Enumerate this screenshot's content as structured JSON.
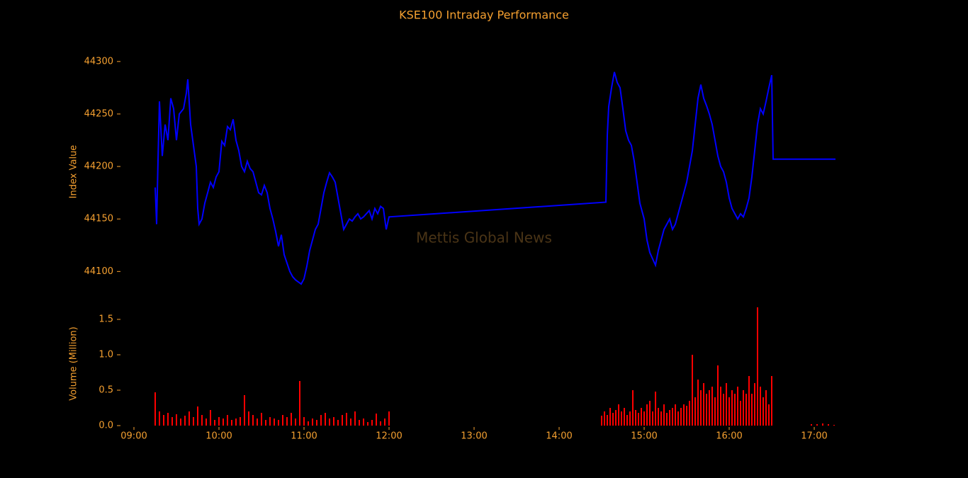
{
  "chart_data": [
    {
      "type": "line",
      "title": "KSE100 Intraday Performance",
      "watermark": "Mettis Global News",
      "y_label": "Index Value",
      "color": "#0000ff",
      "x": [
        "09:15",
        "09:16",
        "09:17",
        "09:18",
        "09:20",
        "09:22",
        "09:24",
        "09:26",
        "09:28",
        "09:30",
        "09:32",
        "09:35",
        "09:37",
        "09:38",
        "09:40",
        "09:42",
        "09:44",
        "09:45",
        "09:46",
        "09:48",
        "09:50",
        "09:52",
        "09:54",
        "09:56",
        "09:58",
        "10:00",
        "10:02",
        "10:04",
        "10:06",
        "10:08",
        "10:10",
        "10:12",
        "10:14",
        "10:16",
        "10:18",
        "10:20",
        "10:22",
        "10:24",
        "10:26",
        "10:28",
        "10:30",
        "10:32",
        "10:34",
        "10:36",
        "10:38",
        "10:40",
        "10:42",
        "10:44",
        "10:46",
        "10:48",
        "10:50",
        "10:52",
        "10:54",
        "10:56",
        "10:58",
        "11:00",
        "11:02",
        "11:04",
        "11:06",
        "11:08",
        "11:10",
        "11:12",
        "11:14",
        "11:16",
        "11:18",
        "11:20",
        "11:22",
        "11:24",
        "11:26",
        "11:28",
        "11:30",
        "11:32",
        "11:34",
        "11:36",
        "11:38",
        "11:40",
        "11:42",
        "11:44",
        "11:46",
        "11:48",
        "11:50",
        "11:52",
        "11:54",
        "11:56",
        "11:58",
        "12:00",
        "14:33",
        "14:34",
        "14:35",
        "14:37",
        "14:39",
        "14:41",
        "14:43",
        "14:45",
        "14:47",
        "14:49",
        "14:51",
        "14:53",
        "14:55",
        "14:57",
        "15:00",
        "15:02",
        "15:04",
        "15:06",
        "15:08",
        "15:10",
        "15:12",
        "15:14",
        "15:16",
        "15:18",
        "15:20",
        "15:22",
        "15:24",
        "15:26",
        "15:28",
        "15:30",
        "15:32",
        "15:34",
        "15:36",
        "15:38",
        "15:40",
        "15:42",
        "15:44",
        "15:46",
        "15:48",
        "15:50",
        "15:52",
        "15:54",
        "15:56",
        "15:58",
        "16:00",
        "16:02",
        "16:04",
        "16:06",
        "16:08",
        "16:10",
        "16:12",
        "16:14",
        "16:16",
        "16:18",
        "16:20",
        "16:22",
        "16:24",
        "16:26",
        "16:28",
        "16:30",
        "16:31",
        "17:15"
      ],
      "values": [
        44180,
        44145,
        44206,
        44262,
        44210,
        44240,
        44225,
        44265,
        44255,
        44225,
        44250,
        44255,
        44270,
        44283,
        44240,
        44220,
        44200,
        44160,
        44145,
        44150,
        44165,
        44175,
        44185,
        44180,
        44190,
        44195,
        44224,
        44220,
        44238,
        44235,
        44245,
        44225,
        44215,
        44200,
        44195,
        44205,
        44198,
        44195,
        44185,
        44175,
        44173,
        44182,
        44175,
        44160,
        44150,
        44138,
        44124,
        44135,
        44116,
        44108,
        44100,
        44095,
        44092,
        44090,
        44088,
        44093,
        44105,
        44120,
        44130,
        44140,
        44145,
        44160,
        44175,
        44185,
        44194,
        44190,
        44185,
        44170,
        44155,
        44140,
        44145,
        44150,
        44148,
        44152,
        44155,
        44150,
        44152,
        44155,
        44158,
        44150,
        44160,
        44155,
        44162,
        44160,
        44140,
        44152,
        44166,
        44230,
        44257,
        44275,
        44290,
        44280,
        44275,
        44255,
        44234,
        44225,
        44220,
        44205,
        44185,
        44165,
        44150,
        44130,
        44118,
        44112,
        44106,
        44120,
        44130,
        44140,
        44145,
        44150,
        44140,
        44145,
        44155,
        44165,
        44175,
        44185,
        44200,
        44215,
        44240,
        44265,
        44278,
        44265,
        44258,
        44250,
        44240,
        44225,
        44210,
        44200,
        44195,
        44185,
        44170,
        44160,
        44155,
        44150,
        44155,
        44152,
        44160,
        44170,
        44190,
        44215,
        44240,
        44255,
        44250,
        44262,
        44275,
        44287,
        44207,
        44207
      ],
      "xlim": [
        "08:50",
        "17:25"
      ],
      "ylim": [
        44080,
        44310
      ],
      "yticks": [
        44100,
        44150,
        44200,
        44250,
        44300
      ]
    },
    {
      "type": "bar",
      "y_label": "Volume (Million)",
      "color": "#ff0000",
      "x": [
        "09:15",
        "09:18",
        "09:21",
        "09:24",
        "09:27",
        "09:30",
        "09:33",
        "09:36",
        "09:39",
        "09:42",
        "09:45",
        "09:48",
        "09:51",
        "09:54",
        "09:57",
        "10:00",
        "10:03",
        "10:06",
        "10:09",
        "10:12",
        "10:15",
        "10:18",
        "10:21",
        "10:24",
        "10:27",
        "10:30",
        "10:33",
        "10:36",
        "10:39",
        "10:42",
        "10:45",
        "10:48",
        "10:51",
        "10:54",
        "10:57",
        "11:00",
        "11:03",
        "11:06",
        "11:09",
        "11:12",
        "11:15",
        "11:18",
        "11:21",
        "11:24",
        "11:27",
        "11:30",
        "11:33",
        "11:36",
        "11:39",
        "11:42",
        "11:45",
        "11:48",
        "11:51",
        "11:54",
        "11:57",
        "12:00",
        "14:30",
        "14:32",
        "14:34",
        "14:36",
        "14:38",
        "14:40",
        "14:42",
        "14:44",
        "14:46",
        "14:48",
        "14:50",
        "14:52",
        "14:54",
        "14:56",
        "14:58",
        "15:00",
        "15:02",
        "15:04",
        "15:06",
        "15:08",
        "15:10",
        "15:12",
        "15:14",
        "15:16",
        "15:18",
        "15:20",
        "15:22",
        "15:24",
        "15:26",
        "15:28",
        "15:30",
        "15:32",
        "15:34",
        "15:36",
        "15:38",
        "15:40",
        "15:42",
        "15:44",
        "15:46",
        "15:48",
        "15:50",
        "15:52",
        "15:54",
        "15:56",
        "15:58",
        "16:00",
        "16:02",
        "16:04",
        "16:06",
        "16:08",
        "16:10",
        "16:12",
        "16:14",
        "16:16",
        "16:18",
        "16:20",
        "16:22",
        "16:24",
        "16:26",
        "16:28",
        "16:30",
        "16:58",
        "17:02",
        "17:06",
        "17:10",
        "17:14"
      ],
      "values": [
        0.47,
        0.2,
        0.15,
        0.18,
        0.12,
        0.16,
        0.1,
        0.14,
        0.2,
        0.12,
        0.27,
        0.15,
        0.1,
        0.22,
        0.08,
        0.12,
        0.1,
        0.15,
        0.08,
        0.1,
        0.12,
        0.43,
        0.2,
        0.15,
        0.1,
        0.18,
        0.08,
        0.12,
        0.1,
        0.08,
        0.15,
        0.12,
        0.18,
        0.1,
        0.63,
        0.12,
        0.06,
        0.1,
        0.08,
        0.15,
        0.18,
        0.1,
        0.12,
        0.08,
        0.15,
        0.18,
        0.1,
        0.2,
        0.08,
        0.1,
        0.05,
        0.08,
        0.17,
        0.06,
        0.1,
        0.2,
        0.14,
        0.2,
        0.15,
        0.25,
        0.18,
        0.22,
        0.3,
        0.2,
        0.25,
        0.15,
        0.2,
        0.5,
        0.22,
        0.18,
        0.25,
        0.2,
        0.3,
        0.35,
        0.2,
        0.48,
        0.25,
        0.2,
        0.3,
        0.18,
        0.22,
        0.25,
        0.3,
        0.2,
        0.25,
        0.3,
        0.28,
        0.35,
        1.0,
        0.4,
        0.65,
        0.5,
        0.6,
        0.45,
        0.5,
        0.55,
        0.4,
        0.85,
        0.55,
        0.45,
        0.6,
        0.4,
        0.5,
        0.45,
        0.55,
        0.35,
        0.5,
        0.45,
        0.7,
        0.45,
        0.6,
        1.67,
        0.55,
        0.4,
        0.5,
        0.3,
        0.7,
        0.02,
        0.02,
        0.03,
        0.02,
        0.01
      ],
      "xlim": [
        "08:50",
        "17:25"
      ],
      "ylim": [
        0,
        1.75
      ],
      "yticks": [
        {
          "value": 0,
          "label": "0.0"
        },
        0.5,
        {
          "value": 1,
          "label": "1.0"
        },
        1.5
      ],
      "xticks": [
        "09:00",
        "10:00",
        "11:00",
        "12:00",
        "13:00",
        "14:00",
        "15:00",
        "16:00",
        "17:00"
      ]
    }
  ]
}
